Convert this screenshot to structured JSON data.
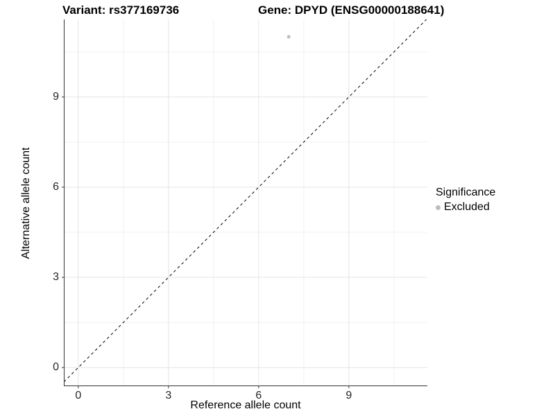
{
  "header": {
    "variant_title": "Variant: rs377169736",
    "gene_title": "Gene: DPYD (ENSG00000188641)"
  },
  "chart_data": {
    "type": "scatter",
    "title_left": "Variant: rs377169736",
    "title_right": "Gene: DPYD (ENSG00000188641)",
    "xlabel": "Reference allele count",
    "ylabel": "Alternative allele count",
    "xlim": [
      -0.48,
      11.61
    ],
    "ylim": [
      -0.62,
      11.58
    ],
    "x_major_ticks": [
      0,
      3,
      6,
      9
    ],
    "y_major_ticks": [
      0,
      3,
      6,
      9
    ],
    "x_minor_ticks": [
      1.5,
      4.5,
      7.5,
      10.5
    ],
    "y_minor_ticks": [
      1.5,
      4.5,
      7.5,
      10.5
    ],
    "grid": true,
    "series": [
      {
        "name": "Excluded",
        "color": "#bdbdbd",
        "marker": "circle",
        "points": [
          {
            "x": 7,
            "y": 11
          }
        ]
      }
    ],
    "reference_line": {
      "type": "identity",
      "slope": 1,
      "intercept": 0,
      "style": "dashed",
      "color": "#000000"
    },
    "legend": {
      "title": "Significance",
      "position": "right",
      "items": [
        {
          "label": "Excluded",
          "color": "#bdbdbd",
          "marker": "circle"
        }
      ]
    }
  },
  "colors": {
    "background": "#ffffff",
    "grid_major": "#e4e4e4",
    "grid_minor": "#f1f1f1",
    "axis_line": "#333333",
    "tick_label": "#262626",
    "point": "#bdbdbd"
  }
}
